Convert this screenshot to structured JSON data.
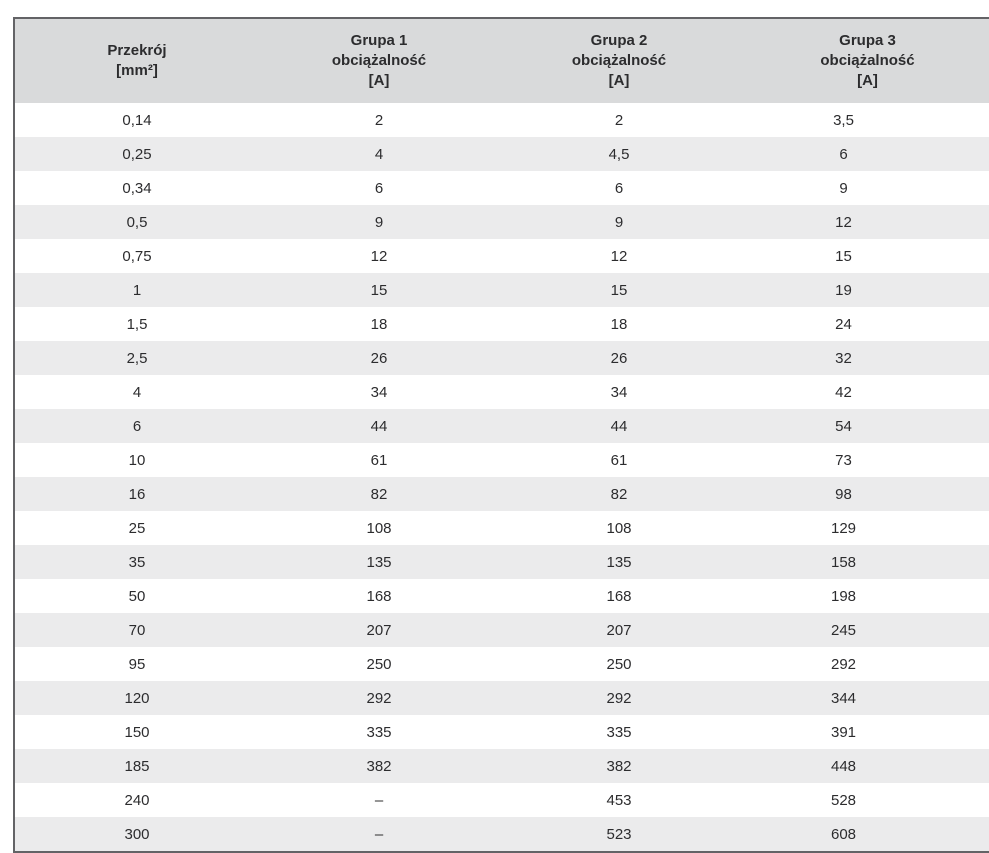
{
  "chart_data": {
    "type": "table",
    "title": "",
    "columns": [
      "Przekrój [mm²]",
      "Grupa 1 obciążalność [A]",
      "Grupa 2 obciążalność [A]",
      "Grupa 3 obciążalność [A]"
    ],
    "rows": [
      [
        "0,14",
        "2",
        "2",
        "3,5"
      ],
      [
        "0,25",
        "4",
        "4,5",
        "6"
      ],
      [
        "0,34",
        "6",
        "6",
        "9"
      ],
      [
        "0,5",
        "9",
        "9",
        "12"
      ],
      [
        "0,75",
        "12",
        "12",
        "15"
      ],
      [
        "1",
        "15",
        "15",
        "19"
      ],
      [
        "1,5",
        "18",
        "18",
        "24"
      ],
      [
        "2,5",
        "26",
        "26",
        "32"
      ],
      [
        "4",
        "34",
        "34",
        "42"
      ],
      [
        "6",
        "44",
        "44",
        "54"
      ],
      [
        "10",
        "61",
        "61",
        "73"
      ],
      [
        "16",
        "82",
        "82",
        "98"
      ],
      [
        "25",
        "108",
        "108",
        "129"
      ],
      [
        "35",
        "135",
        "135",
        "158"
      ],
      [
        "50",
        "168",
        "168",
        "198"
      ],
      [
        "70",
        "207",
        "207",
        "245"
      ],
      [
        "95",
        "250",
        "250",
        "292"
      ],
      [
        "120",
        "292",
        "292",
        "344"
      ],
      [
        "150",
        "335",
        "335",
        "391"
      ],
      [
        "185",
        "382",
        "382",
        "448"
      ],
      [
        "240",
        "–",
        "453",
        "528"
      ],
      [
        "300",
        "–",
        "523",
        "608"
      ]
    ]
  },
  "header": {
    "columns": [
      {
        "line1": "Przekrój",
        "line2": "[mm²]"
      },
      {
        "line1": "Grupa 1",
        "line2": "obciążalność",
        "line3": "[A]"
      },
      {
        "line1": "Grupa 2",
        "line2": "obciążalność",
        "line3": "[A]"
      },
      {
        "line1": "Grupa 3",
        "line2": "obciążalność",
        "line3": "[A]"
      }
    ]
  },
  "colors": {
    "header_bg": "#d9dadb",
    "stripe_bg": "#ebebec",
    "border": "#636366",
    "text": "#2c2c2e"
  }
}
